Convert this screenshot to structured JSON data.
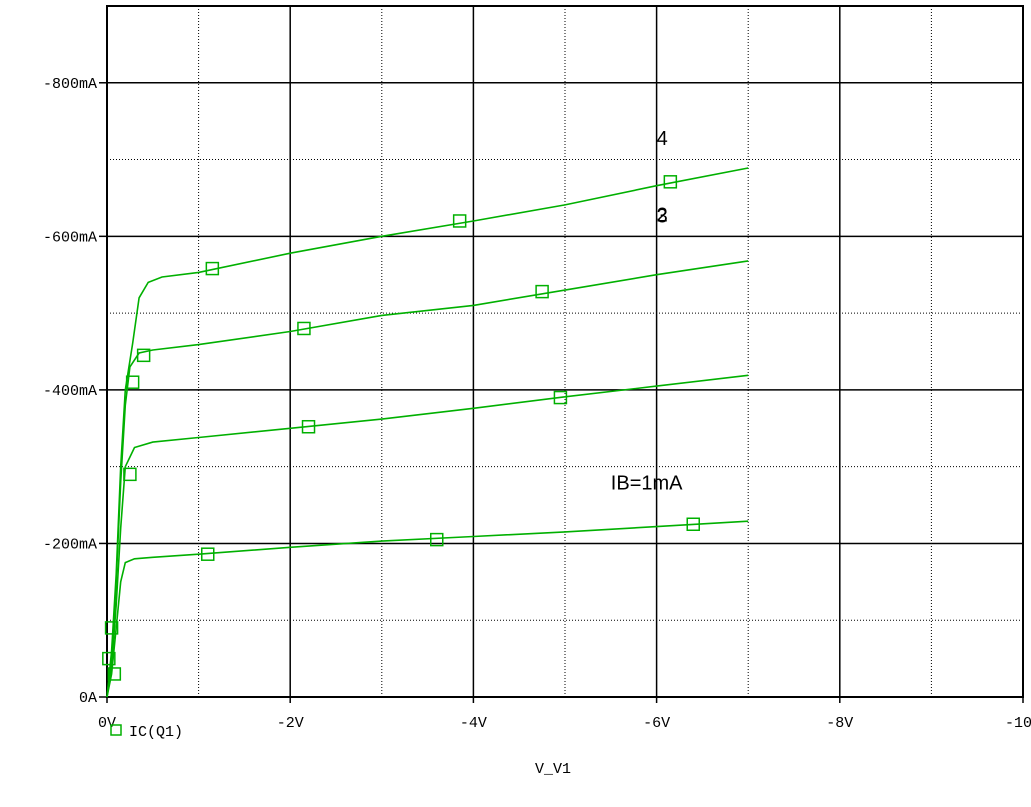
{
  "chart_data": {
    "type": "line",
    "title": "",
    "xlabel": "V_V1",
    "ylabel": "",
    "xlim": [
      0,
      -10
    ],
    "ylim": [
      0,
      -0.9
    ],
    "x_ticks": [
      {
        "value": 0,
        "label": "0V"
      },
      {
        "value": -2,
        "label": "-2V"
      },
      {
        "value": -4,
        "label": "-4V"
      },
      {
        "value": -6,
        "label": "-6V"
      },
      {
        "value": -8,
        "label": "-8V"
      },
      {
        "value": -10,
        "label": "-10V"
      }
    ],
    "y_ticks": [
      {
        "value": 0,
        "label": "0A"
      },
      {
        "value": -0.2,
        "label": "-200mA"
      },
      {
        "value": -0.4,
        "label": "-400mA"
      },
      {
        "value": -0.6,
        "label": "-600mA"
      },
      {
        "value": -0.8,
        "label": "-800mA"
      }
    ],
    "grid": true,
    "legend": {
      "position": "bottom-left",
      "entries": [
        "IC(Q1)"
      ]
    },
    "line_color": "#00b000",
    "series": [
      {
        "name": "IC(Q1)",
        "annotation": "IB=1mA",
        "points": [
          [
            0,
            0
          ],
          [
            -0.05,
            -0.03
          ],
          [
            -0.1,
            -0.09
          ],
          [
            -0.15,
            -0.15
          ],
          [
            -0.2,
            -0.175
          ],
          [
            -0.3,
            -0.18
          ],
          [
            -0.5,
            -0.182
          ],
          [
            -1,
            -0.186
          ],
          [
            -2,
            -0.195
          ],
          [
            -3,
            -0.203
          ],
          [
            -4,
            -0.209
          ],
          [
            -5,
            -0.215
          ],
          [
            -6,
            -0.222
          ],
          [
            -7,
            -0.229
          ]
        ],
        "markers": [
          [
            -1.1,
            -0.186
          ],
          [
            -3.6,
            -0.205
          ],
          [
            -6.4,
            -0.225
          ]
        ]
      },
      {
        "name": "IC(Q1)",
        "annotation": "2",
        "points": [
          [
            0,
            0
          ],
          [
            -0.05,
            -0.04
          ],
          [
            -0.1,
            -0.12
          ],
          [
            -0.15,
            -0.22
          ],
          [
            -0.2,
            -0.3
          ],
          [
            -0.3,
            -0.325
          ],
          [
            -0.5,
            -0.332
          ],
          [
            -1,
            -0.338
          ],
          [
            -2,
            -0.35
          ],
          [
            -3,
            -0.362
          ],
          [
            -4,
            -0.376
          ],
          [
            -5,
            -0.391
          ],
          [
            -6,
            -0.405
          ],
          [
            -7,
            -0.419
          ]
        ],
        "markers": [
          [
            -2.2,
            -0.352
          ],
          [
            -4.95,
            -0.39
          ]
        ]
      },
      {
        "name": "IC(Q1)",
        "annotation": "3",
        "points": [
          [
            0,
            0
          ],
          [
            -0.05,
            -0.05
          ],
          [
            -0.1,
            -0.15
          ],
          [
            -0.15,
            -0.28
          ],
          [
            -0.2,
            -0.38
          ],
          [
            -0.25,
            -0.43
          ],
          [
            -0.35,
            -0.448
          ],
          [
            -0.5,
            -0.452
          ],
          [
            -1,
            -0.459
          ],
          [
            -2,
            -0.476
          ],
          [
            -3,
            -0.497
          ],
          [
            -4,
            -0.51
          ],
          [
            -5,
            -0.53
          ],
          [
            -6,
            -0.55
          ],
          [
            -7,
            -0.568
          ]
        ],
        "markers": [
          [
            -0.4,
            -0.445
          ],
          [
            -2.15,
            -0.48
          ],
          [
            -4.75,
            -0.528
          ]
        ]
      },
      {
        "name": "IC(Q1)",
        "annotation": "4",
        "points": [
          [
            0,
            0
          ],
          [
            -0.05,
            -0.06
          ],
          [
            -0.1,
            -0.16
          ],
          [
            -0.15,
            -0.3
          ],
          [
            -0.2,
            -0.4
          ],
          [
            -0.28,
            -0.46
          ],
          [
            -0.35,
            -0.52
          ],
          [
            -0.45,
            -0.54
          ],
          [
            -0.6,
            -0.547
          ],
          [
            -1,
            -0.553
          ],
          [
            -2,
            -0.578
          ],
          [
            -3,
            -0.6
          ],
          [
            -4,
            -0.62
          ],
          [
            -5,
            -0.641
          ],
          [
            -6,
            -0.666
          ],
          [
            -7,
            -0.689
          ]
        ],
        "markers": [
          [
            -1.15,
            -0.558
          ],
          [
            -3.85,
            -0.62
          ],
          [
            -6.15,
            -0.671
          ]
        ]
      }
    ],
    "extra_markers": [
      [
        -0.02,
        -0.05
      ],
      [
        -0.05,
        -0.09
      ],
      [
        -0.08,
        -0.03
      ],
      [
        -0.25,
        -0.29
      ],
      [
        -0.28,
        -0.41
      ]
    ]
  }
}
